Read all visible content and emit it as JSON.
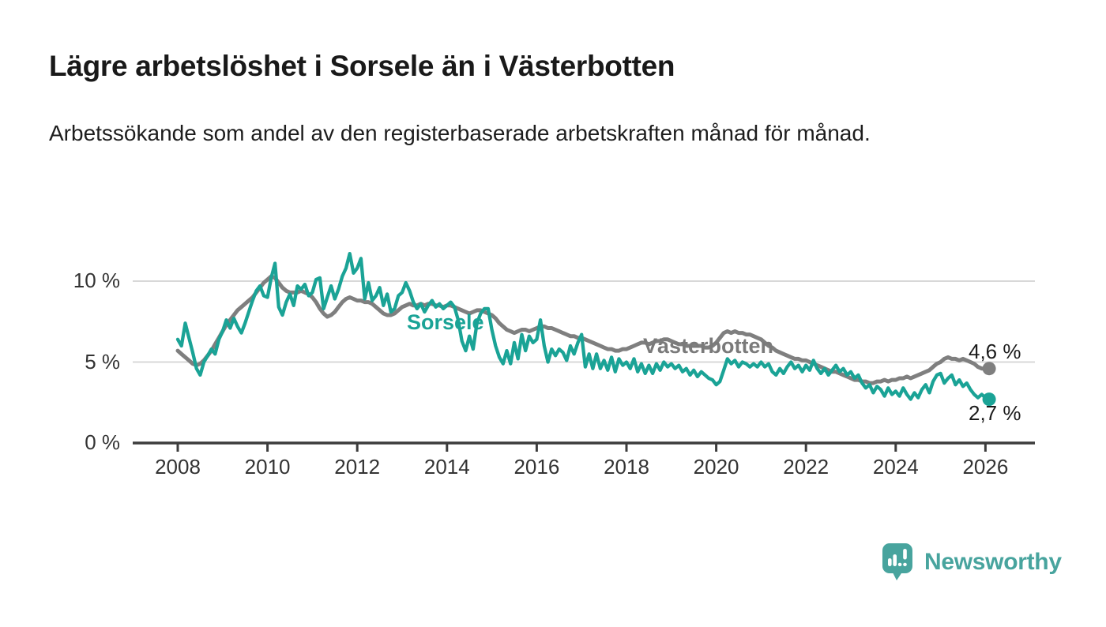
{
  "header": {
    "title": "Lägre arbetslöshet i Sorsele än i Västerbotten",
    "subtitle": "Arbetssökande som andel av den registerbaserade arbetskraften månad för månad."
  },
  "colors": {
    "sorsele_line": "#1aa396",
    "vasterbotten_line": "#7f7f7f",
    "vasterbotten_label": "#7a7a7a",
    "axis": "#3c3c3c",
    "gridline": "#d8d8d8",
    "text_dark": "#191919",
    "brand_teal": "#48a49e"
  },
  "chart_data": {
    "type": "line",
    "title": "Lägre arbetslöshet i Sorsele än i Västerbotten",
    "xlabel": "",
    "ylabel": "",
    "frequency": "monthly",
    "x_start": "2008-01",
    "x_end": "2026-02",
    "x_start_year": 2008,
    "ylim": [
      0,
      12.5
    ],
    "grid": "horizontal",
    "y_ticks": [
      {
        "label": "10 %",
        "value": 10
      },
      {
        "label": "5 %",
        "value": 5
      },
      {
        "label": "0 %",
        "value": 0
      }
    ],
    "x_ticks": [
      {
        "label": "2008",
        "year": 2008
      },
      {
        "label": "2010",
        "year": 2010
      },
      {
        "label": "2012",
        "year": 2012
      },
      {
        "label": "2014",
        "year": 2014
      },
      {
        "label": "2016",
        "year": 2016
      },
      {
        "label": "2018",
        "year": 2018
      },
      {
        "label": "2020",
        "year": 2020
      },
      {
        "label": "2022",
        "year": 2022
      },
      {
        "label": "2024",
        "year": 2024
      },
      {
        "label": "2026",
        "year": 2026
      }
    ],
    "series": [
      {
        "name": "Sorsele",
        "slug": "sorsele",
        "color": "#1aa396",
        "end_label": "2,7 %",
        "end_value": 2.7,
        "values": [
          6.4,
          6.0,
          7.4,
          6.5,
          5.6,
          4.6,
          4.2,
          5.0,
          5.4,
          5.8,
          5.5,
          6.4,
          6.9,
          7.6,
          7.1,
          7.7,
          7.2,
          6.8,
          7.4,
          8.1,
          8.8,
          9.4,
          9.7,
          9.1,
          9.0,
          10.2,
          11.1,
          8.4,
          7.9,
          8.7,
          9.2,
          8.5,
          9.7,
          9.5,
          9.8,
          9.1,
          9.3,
          10.1,
          10.2,
          8.3,
          9.0,
          9.7,
          8.9,
          9.5,
          10.3,
          10.8,
          11.7,
          10.5,
          10.8,
          11.4,
          8.9,
          9.9,
          8.8,
          9.1,
          9.6,
          8.5,
          9.2,
          8.1,
          8.3,
          9.1,
          9.3,
          9.9,
          9.4,
          8.7,
          8.3,
          8.6,
          8.1,
          8.5,
          8.8,
          8.4,
          8.6,
          8.3,
          8.5,
          8.7,
          8.4,
          7.6,
          6.3,
          5.7,
          6.6,
          5.8,
          7.4,
          8.0,
          8.3,
          8.3,
          7.0,
          6.0,
          5.3,
          4.9,
          5.7,
          4.9,
          6.2,
          5.2,
          6.7,
          5.7,
          6.6,
          6.2,
          6.4,
          7.6,
          6.0,
          5.0,
          5.8,
          5.4,
          5.8,
          5.6,
          5.1,
          6.0,
          5.5,
          6.2,
          6.7,
          4.7,
          5.5,
          4.6,
          5.5,
          4.6,
          5.1,
          4.5,
          5.3,
          4.4,
          5.2,
          4.8,
          5.0,
          4.6,
          5.2,
          4.4,
          4.9,
          4.3,
          4.8,
          4.3,
          4.9,
          4.5,
          5.0,
          4.7,
          4.9,
          4.6,
          4.8,
          4.4,
          4.6,
          4.2,
          4.5,
          4.1,
          4.4,
          4.2,
          4.0,
          3.9,
          3.6,
          3.8,
          4.5,
          5.2,
          4.9,
          5.1,
          4.7,
          5.0,
          4.9,
          4.7,
          4.9,
          4.7,
          5.0,
          4.7,
          4.9,
          4.4,
          4.2,
          4.6,
          4.3,
          4.7,
          5.0,
          4.6,
          4.8,
          4.4,
          4.8,
          4.5,
          5.1,
          4.6,
          4.3,
          4.6,
          4.2,
          4.5,
          4.8,
          4.4,
          4.6,
          4.2,
          4.4,
          4.0,
          4.2,
          3.7,
          3.4,
          3.6,
          3.1,
          3.5,
          3.3,
          2.9,
          3.4,
          3.0,
          3.2,
          2.9,
          3.4,
          3.0,
          2.7,
          3.1,
          2.8,
          3.3,
          3.6,
          3.1,
          3.8,
          4.2,
          4.3,
          3.7,
          4.0,
          4.2,
          3.6,
          3.9,
          3.5,
          3.7,
          3.3,
          3.0,
          2.8,
          3.0,
          2.8,
          2.7
        ]
      },
      {
        "name": "Västerbotten",
        "slug": "vasterbotten",
        "color": "#7f7f7f",
        "end_label": "4,6 %",
        "end_value": 4.6,
        "values": [
          5.7,
          5.5,
          5.3,
          5.1,
          4.9,
          4.8,
          4.9,
          5.1,
          5.4,
          5.7,
          6.1,
          6.5,
          6.9,
          7.3,
          7.6,
          7.9,
          8.2,
          8.4,
          8.6,
          8.8,
          9.0,
          9.3,
          9.6,
          9.9,
          10.1,
          10.3,
          10.2,
          9.9,
          9.6,
          9.4,
          9.3,
          9.3,
          9.3,
          9.4,
          9.3,
          9.2,
          9.0,
          8.7,
          8.3,
          8.0,
          7.8,
          7.9,
          8.1,
          8.4,
          8.7,
          8.9,
          9.0,
          8.9,
          8.8,
          8.8,
          8.7,
          8.7,
          8.6,
          8.4,
          8.2,
          8.0,
          7.9,
          7.9,
          8.0,
          8.2,
          8.4,
          8.5,
          8.6,
          8.5,
          8.5,
          8.6,
          8.5,
          8.6,
          8.6,
          8.5,
          8.5,
          8.4,
          8.5,
          8.5,
          8.4,
          8.3,
          8.2,
          8.1,
          8.0,
          8.1,
          8.2,
          8.2,
          8.1,
          8.0,
          7.9,
          7.7,
          7.4,
          7.2,
          7.0,
          6.9,
          6.8,
          6.9,
          7.0,
          7.0,
          6.9,
          7.0,
          7.1,
          7.2,
          7.2,
          7.1,
          7.1,
          7.0,
          6.9,
          6.8,
          6.7,
          6.6,
          6.6,
          6.5,
          6.5,
          6.4,
          6.3,
          6.2,
          6.1,
          6.0,
          5.9,
          5.8,
          5.8,
          5.7,
          5.7,
          5.8,
          5.8,
          5.9,
          6.0,
          6.1,
          6.2,
          6.2,
          6.1,
          6.2,
          6.3,
          6.3,
          6.4,
          6.4,
          6.3,
          6.2,
          6.1,
          6.1,
          6.0,
          6.0,
          6.1,
          6.0,
          6.0,
          5.9,
          5.9,
          6.0,
          6.2,
          6.5,
          6.8,
          6.9,
          6.8,
          6.9,
          6.8,
          6.8,
          6.7,
          6.7,
          6.6,
          6.5,
          6.4,
          6.2,
          6.0,
          5.9,
          5.7,
          5.6,
          5.5,
          5.4,
          5.3,
          5.2,
          5.2,
          5.1,
          5.1,
          5.0,
          4.9,
          4.8,
          4.7,
          4.6,
          4.5,
          4.4,
          4.4,
          4.3,
          4.2,
          4.1,
          4.0,
          3.9,
          3.9,
          3.8,
          3.8,
          3.7,
          3.7,
          3.8,
          3.8,
          3.9,
          3.8,
          3.9,
          3.9,
          4.0,
          4.0,
          4.1,
          4.0,
          4.1,
          4.2,
          4.3,
          4.4,
          4.5,
          4.7,
          4.9,
          5.0,
          5.2,
          5.3,
          5.2,
          5.2,
          5.1,
          5.2,
          5.1,
          5.0,
          4.9,
          4.7,
          4.6,
          4.6,
          4.6
        ]
      }
    ]
  },
  "footer": {
    "brand": "Newsworthy",
    "logo_icon": "bar-chart-speech-bubble-icon"
  }
}
